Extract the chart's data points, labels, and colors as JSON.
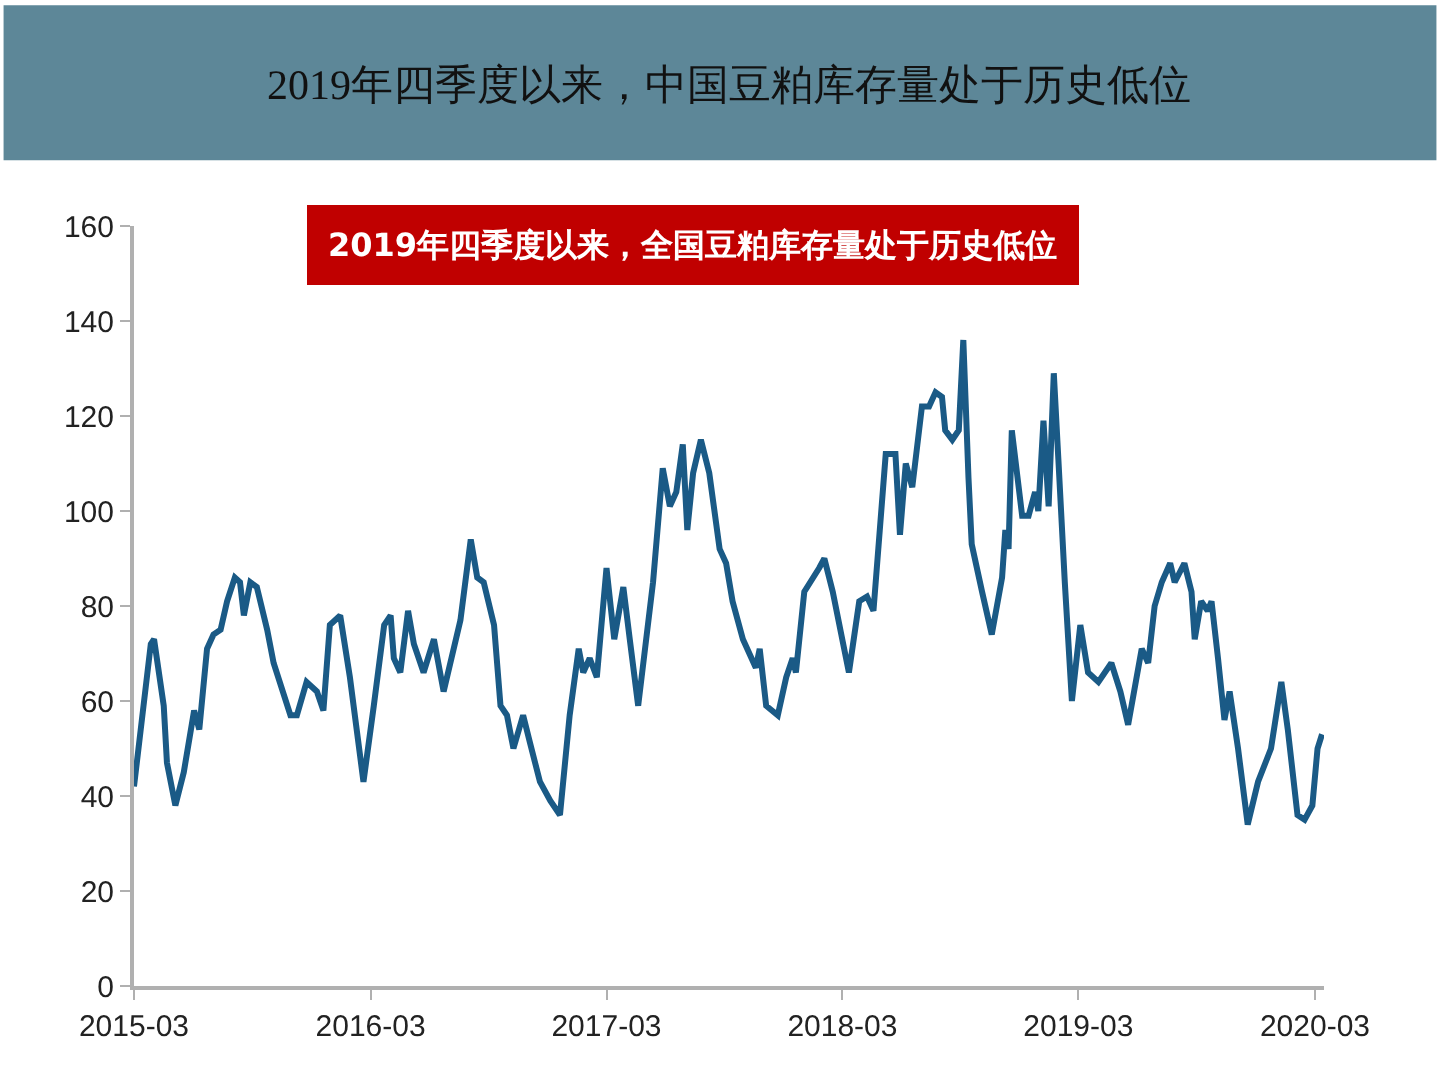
{
  "chart_data": {
    "type": "line",
    "title": "2019年四季度以来，中国豆粕库存量处于历史低位",
    "annotations": [
      "2019年四季度以来，全国豆粕库存量处于历史低位"
    ],
    "x": [
      "2015-03-01",
      "2015-03-27",
      "2015-04-01",
      "2015-04-16",
      "2015-04-21",
      "2015-05-04",
      "2015-05-17",
      "2015-06-02",
      "2015-06-10",
      "2015-06-22",
      "2015-07-02",
      "2015-07-13",
      "2015-07-23",
      "2015-08-04",
      "2015-08-12",
      "2015-08-18",
      "2015-08-28",
      "2015-09-07",
      "2015-09-23",
      "2015-10-03",
      "2015-10-29",
      "2015-11-08",
      "2015-11-23",
      "2015-12-09",
      "2015-12-19",
      "2015-12-29",
      "2016-01-14",
      "2016-01-29",
      "2016-02-19",
      "2016-03-06",
      "2016-03-22",
      "2016-04-01",
      "2016-04-06",
      "2016-04-16",
      "2016-04-28",
      "2016-05-07",
      "2016-05-22",
      "2016-06-07",
      "2016-06-22",
      "2016-07-18",
      "2016-08-03",
      "2016-08-13",
      "2016-08-23",
      "2016-09-08",
      "2016-09-18",
      "2016-09-28",
      "2016-10-08",
      "2016-10-23",
      "2016-11-03",
      "2016-11-18",
      "2016-12-04",
      "2016-12-19",
      "2017-01-03",
      "2017-01-17",
      "2017-01-24",
      "2017-02-03",
      "2017-02-14",
      "2017-03-01",
      "2017-03-13",
      "2017-03-27",
      "2017-04-06",
      "2017-04-19",
      "2017-05-12",
      "2017-05-27",
      "2017-06-07",
      "2017-06-17",
      "2017-06-27",
      "2017-07-04",
      "2017-07-13",
      "2017-07-25",
      "2017-08-07",
      "2017-08-23",
      "2017-09-02",
      "2017-09-12",
      "2017-09-28",
      "2017-10-18",
      "2017-10-24",
      "2017-11-03",
      "2017-11-21",
      "2017-12-04",
      "2017-12-14",
      "2017-12-19",
      "2018-01-01",
      "2018-01-24",
      "2018-02-01",
      "2018-02-14",
      "2018-03-11",
      "2018-03-27",
      "2018-04-08",
      "2018-04-18",
      "2018-05-07",
      "2018-05-22",
      "2018-05-29",
      "2018-06-07",
      "2018-06-17",
      "2018-07-02",
      "2018-07-13",
      "2018-07-23",
      "2018-08-02",
      "2018-08-07",
      "2018-08-18",
      "2018-08-28",
      "2018-09-04",
      "2018-09-12",
      "2018-09-17",
      "2018-10-03",
      "2018-10-18",
      "2018-11-03",
      "2018-11-08",
      "2018-11-13",
      "2018-11-18",
      "2018-12-04",
      "2018-12-14",
      "2018-12-24",
      "2018-12-29",
      "2019-01-06",
      "2019-01-14",
      "2019-01-22",
      "2019-01-29",
      "2019-02-08",
      "2019-02-19",
      "2019-03-04",
      "2019-03-16",
      "2019-04-01",
      "2019-04-21",
      "2019-05-05",
      "2019-05-17",
      "2019-06-07",
      "2019-06-17",
      "2019-06-27",
      "2019-07-08",
      "2019-07-21",
      "2019-07-28",
      "2019-08-12",
      "2019-08-23",
      "2019-08-28",
      "2019-09-07",
      "2019-09-17",
      "2019-09-23",
      "2019-10-03",
      "2019-10-13",
      "2019-10-21",
      "2019-11-03",
      "2019-11-18",
      "2019-12-04",
      "2019-12-24",
      "2020-01-09",
      "2020-01-19",
      "2020-02-03",
      "2020-02-14",
      "2020-02-26",
      "2020-03-05",
      "2020-03-12"
    ],
    "series": [
      {
        "color": "#1a5a86",
        "values": [
          42,
          72,
          73,
          59,
          47,
          38,
          45,
          58,
          54,
          71,
          74,
          75,
          81,
          86,
          85,
          78,
          85,
          84,
          75,
          68,
          57,
          57,
          64,
          62,
          58,
          76,
          78,
          65,
          43,
          59,
          76,
          78,
          69,
          66,
          79,
          72,
          66,
          73,
          62,
          77,
          94,
          86,
          85,
          76,
          59,
          57,
          50,
          57,
          51,
          43,
          39,
          36,
          57,
          71,
          66,
          69,
          65,
          88,
          73,
          84,
          73,
          59,
          85,
          109,
          101,
          104,
          114,
          96,
          108,
          115,
          108,
          92,
          89,
          81,
          73,
          67,
          71,
          59,
          57,
          65,
          69,
          66,
          83,
          88,
          90,
          83,
          66,
          81,
          82,
          79,
          112,
          112,
          95,
          110,
          105,
          122,
          122,
          125,
          124,
          117,
          115,
          117,
          136,
          107,
          93,
          83,
          74,
          86,
          96,
          92,
          117,
          99,
          99,
          104,
          100,
          119,
          101,
          129,
          111,
          85,
          60,
          76,
          66,
          64,
          68,
          62,
          55,
          71,
          68,
          80,
          85,
          89,
          85,
          89,
          83,
          73,
          81,
          79,
          81,
          69,
          56,
          62,
          50,
          34,
          43,
          50,
          64,
          54,
          36,
          35,
          38,
          50,
          53
        ]
      }
    ],
    "xlim": [
      "2015-03-01",
      "2020-03-15"
    ],
    "xticks": [
      {
        "value": "2015-03-01",
        "label": "2015-03"
      },
      {
        "value": "2016-03-01",
        "label": "2016-03"
      },
      {
        "value": "2017-03-01",
        "label": "2017-03"
      },
      {
        "value": "2018-03-01",
        "label": "2018-03"
      },
      {
        "value": "2019-03-01",
        "label": "2019-03"
      },
      {
        "value": "2020-03-01",
        "label": "2020-03"
      }
    ],
    "ylim": [
      0,
      160
    ],
    "yticks": [
      0,
      20,
      40,
      60,
      80,
      100,
      120,
      140,
      160
    ],
    "marker": "none",
    "line_style": "solid"
  }
}
